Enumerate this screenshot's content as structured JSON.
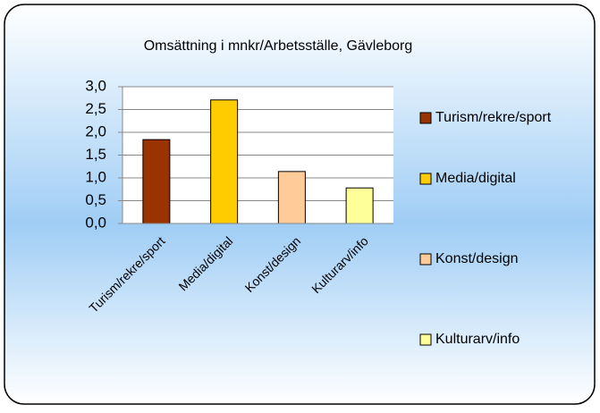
{
  "chart_data": {
    "type": "bar",
    "title": "Omsättning i mnkr/Arbetsställe, Gävleborg",
    "categories": [
      "Turism/rekre/sport",
      "Media/digital",
      "Konst/design",
      "Kulturarv/info"
    ],
    "values": [
      1.84,
      2.71,
      1.14,
      0.78
    ],
    "colors": [
      "#993300",
      "#ffcc00",
      "#ffcc99",
      "#ffff99"
    ],
    "ylim": [
      0,
      3
    ],
    "yticks": [
      {
        "value": 0,
        "label": "0,0"
      },
      {
        "value": 0.5,
        "label": "0,5"
      },
      {
        "value": 1,
        "label": "1,0"
      },
      {
        "value": 1.5,
        "label": "1,5"
      },
      {
        "value": 2,
        "label": "2,0"
      },
      {
        "value": 2.5,
        "label": "2,5"
      },
      {
        "value": 3,
        "label": "3,0"
      }
    ],
    "grid": true,
    "legend": "right"
  }
}
